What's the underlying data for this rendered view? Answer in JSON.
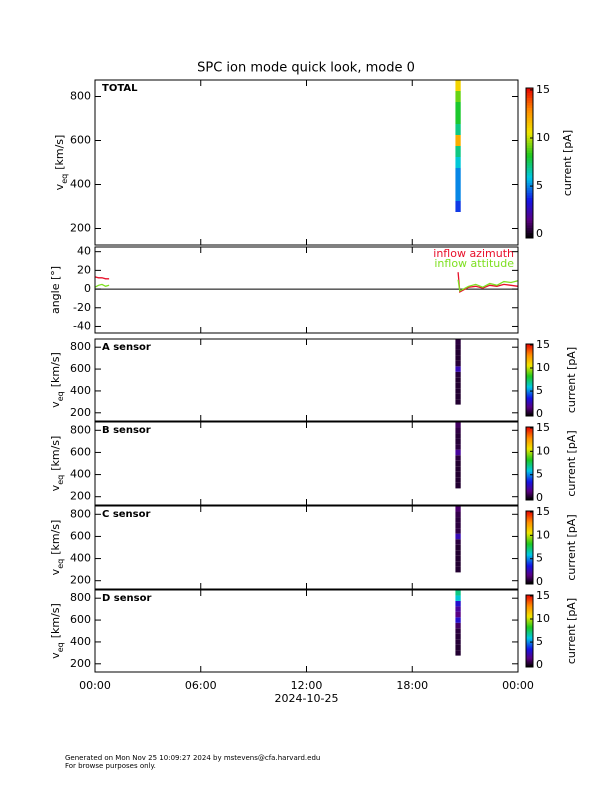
{
  "title": "SPC ion mode quick look, mode 0",
  "footer": [
    "Generated on Mon Nov 25 10:09:27 2024 by mstevens@cfa.harvard.edu",
    "For browse purposes only."
  ],
  "chart_data": [
    {
      "type": "spectrogram",
      "panel_label": "TOTAL",
      "y_label": "v",
      "y_label_sub": "eq",
      "y_label_unit": "[km/s]",
      "xlim": [
        0,
        24
      ],
      "xticks": [
        0,
        6,
        12,
        18,
        24
      ],
      "ylim": [
        125,
        875
      ],
      "yticks": [
        200,
        400,
        600,
        800
      ],
      "x": [
        20.45,
        20.75
      ],
      "v_edges": [
        275,
        325,
        375,
        425,
        475,
        525,
        575,
        625,
        675,
        725,
        775,
        825,
        875
      ],
      "currents": [
        4,
        5,
        5,
        5,
        6,
        7,
        12,
        7,
        8,
        8,
        9,
        11
      ],
      "clim": [
        -0.4,
        15.2
      ],
      "cticks": [
        0,
        5,
        10,
        15
      ],
      "colorbar_label": "current [pA]"
    },
    {
      "type": "line",
      "y_label": "angle [°]",
      "xlim": [
        0,
        24
      ],
      "xticks": [
        0,
        6,
        12,
        18,
        24
      ],
      "ylim": [
        -47,
        45
      ],
      "yticks": [
        -40,
        -20,
        0,
        20,
        40
      ],
      "zero_line": true,
      "x": [
        0,
        0.2,
        0.4,
        0.6,
        0.8,
        12,
        20.6,
        20.7,
        21.2,
        21.6,
        22,
        22.4,
        22.8,
        23.2,
        23.6,
        24
      ],
      "series": [
        {
          "name": "inflow azimuth",
          "color": "#e8102a",
          "values": [
            13,
            12,
            12,
            11,
            11,
            null,
            18,
            -3,
            2,
            3,
            1,
            4,
            3,
            5,
            4,
            3
          ]
        },
        {
          "name": "inflow attitude",
          "color": "#7ee020",
          "values": [
            2,
            4,
            5,
            3,
            4,
            null,
            10,
            -2,
            3,
            5,
            2,
            6,
            4,
            8,
            7,
            9
          ]
        }
      ]
    },
    {
      "type": "spectrogram",
      "panel_label": "A sensor",
      "y_label": "v",
      "y_label_sub": "eq",
      "y_label_unit": "[km/s]",
      "xlim": [
        0,
        24
      ],
      "xticks": [
        0,
        6,
        12,
        18,
        24
      ],
      "ylim": [
        125,
        875
      ],
      "yticks": [
        200,
        400,
        600,
        800
      ],
      "x": [
        20.45,
        20.75
      ],
      "v_edges": [
        275,
        325,
        375,
        425,
        475,
        525,
        575,
        625,
        675,
        725,
        775,
        825,
        875
      ],
      "currents": [
        0.3,
        0.3,
        0.3,
        0.3,
        0.3,
        0.4,
        2.5,
        0.4,
        0.3,
        0.3,
        0.4,
        0.5
      ],
      "clim": [
        -0.4,
        15.2
      ],
      "cticks": [
        0,
        5,
        10,
        15
      ],
      "colorbar_label": "current [pA]"
    },
    {
      "type": "spectrogram",
      "panel_label": "B sensor",
      "y_label": "v",
      "y_label_sub": "eq",
      "y_label_unit": "[km/s]",
      "xlim": [
        0,
        24
      ],
      "xticks": [
        0,
        6,
        12,
        18,
        24
      ],
      "ylim": [
        125,
        875
      ],
      "yticks": [
        200,
        400,
        600,
        800
      ],
      "x": [
        20.45,
        20.75
      ],
      "v_edges": [
        275,
        325,
        375,
        425,
        475,
        525,
        575,
        625,
        675,
        725,
        775,
        825,
        875
      ],
      "currents": [
        0.3,
        0.3,
        0.3,
        0.3,
        0.3,
        0.5,
        2,
        0.5,
        0.4,
        0.4,
        0.6,
        1
      ],
      "clim": [
        -0.4,
        15.2
      ],
      "cticks": [
        0,
        5,
        10,
        15
      ],
      "colorbar_label": "current [pA]"
    },
    {
      "type": "spectrogram",
      "panel_label": "C sensor",
      "y_label": "v",
      "y_label_sub": "eq",
      "y_label_unit": "[km/s]",
      "xlim": [
        0,
        24
      ],
      "xticks": [
        0,
        6,
        12,
        18,
        24
      ],
      "ylim": [
        125,
        875
      ],
      "yticks": [
        200,
        400,
        600,
        800
      ],
      "x": [
        20.45,
        20.75
      ],
      "v_edges": [
        275,
        325,
        375,
        425,
        475,
        525,
        575,
        625,
        675,
        725,
        775,
        825,
        875
      ],
      "currents": [
        0.3,
        0.3,
        0.3,
        0.3,
        0.3,
        0.5,
        2.5,
        0.6,
        0.5,
        0.5,
        0.7,
        1.2
      ],
      "clim": [
        -0.4,
        15.2
      ],
      "cticks": [
        0,
        5,
        10,
        15
      ],
      "colorbar_label": "current [pA]"
    },
    {
      "type": "spectrogram",
      "panel_label": "D sensor",
      "y_label": "v",
      "y_label_sub": "eq",
      "y_label_unit": "[km/s]",
      "xlim": [
        0,
        24
      ],
      "xticks": [
        {
          "value": 0,
          "label": "00:00"
        },
        {
          "value": 6,
          "label": "06:00"
        },
        {
          "value": 12,
          "label": "12:00"
        },
        {
          "value": 18,
          "label": "18:00"
        },
        {
          "value": 24,
          "label": "00:00"
        }
      ],
      "x_label": "2024-10-25",
      "ylim": [
        125,
        875
      ],
      "yticks": [
        200,
        400,
        600,
        800
      ],
      "x": [
        20.45,
        20.75
      ],
      "v_edges": [
        275,
        325,
        375,
        425,
        475,
        525,
        575,
        625,
        675,
        725,
        775,
        825,
        875
      ],
      "currents": [
        0.3,
        0.3,
        0.4,
        0.4,
        0.5,
        1,
        3,
        1.5,
        2,
        3,
        6,
        7
      ],
      "clim": [
        -0.4,
        15.2
      ],
      "cticks": [
        0,
        5,
        10,
        15
      ],
      "colorbar_label": "current [pA]"
    }
  ]
}
